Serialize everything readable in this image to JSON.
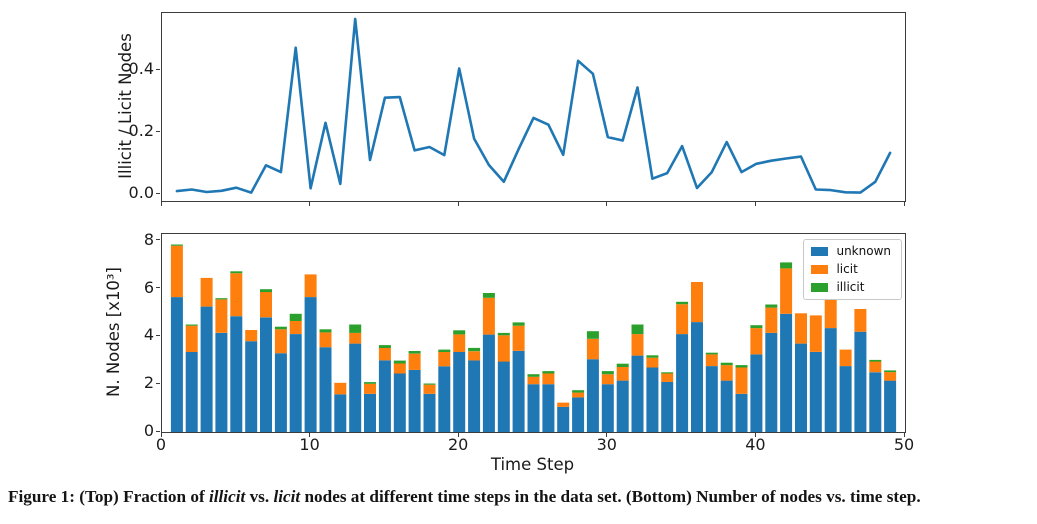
{
  "caption": {
    "parts": [
      {
        "text": "Figure 1: (Top) Fraction of ",
        "style": "bold"
      },
      {
        "text": "illicit",
        "style": "bold-italic"
      },
      {
        "text": " vs. ",
        "style": "bold"
      },
      {
        "text": "licit",
        "style": "bold-italic"
      },
      {
        "text": " nodes at different time steps in the data set. (Bottom) Number of nodes vs. time step.",
        "style": "bold"
      }
    ]
  },
  "colors": {
    "line": "#1f77b4",
    "unknown": "#1f77b4",
    "licit": "#ff7f0e",
    "illicit": "#2ca02c",
    "axis": "#3c3c3c"
  },
  "chart_data": [
    {
      "type": "line",
      "ylabel": "Illicit / Licit Nodes",
      "color": "#1f77b4",
      "x": [
        1,
        2,
        3,
        4,
        5,
        6,
        7,
        8,
        9,
        10,
        11,
        12,
        13,
        14,
        15,
        16,
        17,
        18,
        19,
        20,
        21,
        22,
        23,
        24,
        25,
        26,
        27,
        28,
        29,
        30,
        31,
        32,
        33,
        34,
        35,
        36,
        37,
        38,
        39,
        40,
        41,
        42,
        43,
        44,
        45,
        46,
        47,
        48,
        49
      ],
      "values": [
        0.01,
        0.015,
        0.007,
        0.011,
        0.021,
        0.005,
        0.093,
        0.071,
        0.472,
        0.019,
        0.23,
        0.033,
        0.565,
        0.11,
        0.311,
        0.313,
        0.141,
        0.152,
        0.126,
        0.405,
        0.179,
        0.094,
        0.04,
        0.145,
        0.246,
        0.224,
        0.127,
        0.43,
        0.388,
        0.184,
        0.173,
        0.344,
        0.05,
        0.068,
        0.155,
        0.02,
        0.071,
        0.168,
        0.071,
        0.098,
        0.108,
        0.115,
        0.121,
        0.015,
        0.013,
        0.006,
        0.005,
        0.04,
        0.133
      ],
      "xlim": [
        0,
        50
      ],
      "ylim": [
        -0.022,
        0.584
      ],
      "yticks": [
        "0.0",
        "0.2",
        "0.4"
      ],
      "xticks": [
        "0",
        "10",
        "20",
        "30",
        "40",
        "50"
      ],
      "grid": false
    },
    {
      "type": "bar",
      "stacked": true,
      "xlabel": "Time Step",
      "ylabel": "N. Nodes [x10³]",
      "categories": [
        1,
        2,
        3,
        4,
        5,
        6,
        7,
        8,
        9,
        10,
        11,
        12,
        13,
        14,
        15,
        16,
        17,
        18,
        19,
        20,
        21,
        22,
        23,
        24,
        25,
        26,
        27,
        28,
        29,
        30,
        31,
        32,
        33,
        34,
        35,
        36,
        37,
        38,
        39,
        40,
        41,
        42,
        43,
        44,
        45,
        46,
        47,
        48,
        49
      ],
      "series": [
        {
          "name": "unknown",
          "color": "#1f77b4",
          "values": [
            5.65,
            3.35,
            5.25,
            4.15,
            4.85,
            3.8,
            4.8,
            3.3,
            4.1,
            5.65,
            3.55,
            1.58,
            3.7,
            1.6,
            3.0,
            2.45,
            2.6,
            1.6,
            2.75,
            3.35,
            3.0,
            4.08,
            2.95,
            3.4,
            2.0,
            2.0,
            1.05,
            1.45,
            3.05,
            2.0,
            2.15,
            3.2,
            2.7,
            2.1,
            4.1,
            4.6,
            2.76,
            2.15,
            1.6,
            3.25,
            4.15,
            4.95,
            3.7,
            3.35,
            4.35,
            2.76,
            4.2,
            2.5,
            2.15
          ]
        },
        {
          "name": "licit",
          "color": "#ff7f0e",
          "values": [
            2.15,
            1.1,
            1.2,
            1.4,
            1.8,
            0.47,
            1.06,
            1.0,
            0.55,
            0.95,
            0.62,
            0.48,
            0.45,
            0.42,
            0.52,
            0.42,
            0.68,
            0.38,
            0.6,
            0.74,
            0.38,
            1.54,
            1.1,
            1.05,
            0.31,
            0.45,
            0.18,
            0.2,
            0.85,
            0.42,
            0.57,
            0.9,
            0.41,
            0.35,
            1.25,
            1.68,
            0.49,
            0.65,
            1.1,
            1.1,
            1.06,
            1.9,
            1.27,
            1.53,
            1.25,
            0.69,
            0.95,
            0.45,
            0.36
          ]
        },
        {
          "name": "illicit",
          "color": "#2ca02c",
          "values": [
            0.05,
            0.05,
            0.0,
            0.05,
            0.08,
            0.0,
            0.12,
            0.11,
            0.3,
            0.0,
            0.13,
            0.0,
            0.35,
            0.07,
            0.12,
            0.12,
            0.11,
            0.05,
            0.1,
            0.17,
            0.14,
            0.2,
            0.1,
            0.14,
            0.11,
            0.1,
            0.0,
            0.1,
            0.32,
            0.13,
            0.14,
            0.4,
            0.1,
            0.05,
            0.1,
            0.0,
            0.07,
            0.1,
            0.1,
            0.12,
            0.13,
            0.25,
            0.0,
            0.0,
            0.0,
            0.0,
            0.0,
            0.07,
            0.07
          ]
        }
      ],
      "xlim": [
        0,
        50
      ],
      "ylim": [
        0,
        8.29
      ],
      "yticks": [
        "0",
        "2",
        "4",
        "6",
        "8"
      ],
      "xticks": [
        "0",
        "10",
        "20",
        "30",
        "40",
        "50"
      ],
      "grid": false,
      "legend": {
        "position": "upper right",
        "entries": [
          "unknown",
          "licit",
          "illicit"
        ]
      }
    }
  ]
}
